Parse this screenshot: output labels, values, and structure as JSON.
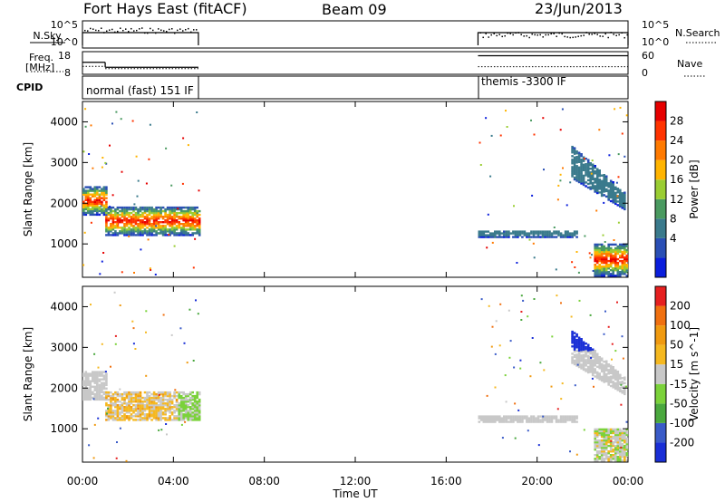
{
  "header": {
    "station": "Fort Hays East (fitACF)",
    "beam": "Beam 09",
    "date": "23/Jun/2013"
  },
  "chart_data": [
    {
      "type": "line",
      "name": "noise-panel",
      "left_label": "N.Sky",
      "right_label": "N.Search",
      "left_ticks": [
        "10^5",
        "10^0"
      ],
      "right_ticks": [
        "10^5",
        "10^0"
      ],
      "series": [
        {
          "segments": [
            [
              0.0,
              5.1
            ],
            [
              17.4,
              24.0
            ]
          ]
        }
      ]
    },
    {
      "type": "line",
      "name": "freq-panel",
      "left_label_1": "Freq.",
      "left_label_2": "[MHz]",
      "right_label": "Nave",
      "left_ticks": [
        "18",
        "8"
      ],
      "right_ticks": [
        "60",
        "0"
      ],
      "freq_steps": [
        {
          "x0": 0.0,
          "x1": 1.0,
          "mhz": 13.3
        },
        {
          "x0": 1.0,
          "x1": 5.1,
          "mhz": 11.1
        },
        {
          "x0": 17.4,
          "x1": 24.0,
          "mhz": 16.2
        }
      ],
      "nave_steps": [
        {
          "x0": 0.0,
          "x1": 1.0,
          "n": 21
        },
        {
          "x0": 1.0,
          "x1": 5.1,
          "n": 15
        },
        {
          "x0": 17.4,
          "x1": 24.0,
          "n": 20
        }
      ]
    },
    {
      "type": "table",
      "name": "cpid-panel",
      "label": "CPID",
      "modes": [
        {
          "x": 0.05,
          "text": "normal (fast) 151 IF"
        },
        {
          "x": 17.45,
          "text": "themis -3300 IF"
        }
      ]
    },
    {
      "type": "heatmap",
      "name": "power-panel",
      "ylabel": "Slant Range [km]",
      "yticks": [
        1000,
        2000,
        3000,
        4000
      ],
      "ylim": [
        180,
        4500
      ],
      "colorbar_label": "Power [dB]",
      "colorbar_ticks": [
        "28",
        "24",
        "20",
        "16",
        "12",
        "8",
        "4"
      ],
      "colors": [
        "#0a1edc",
        "#2a4fb5",
        "#3a7a8c",
        "#4a9a60",
        "#9acd32",
        "#ffb400",
        "#ff7a00",
        "#ff3300",
        "#e60000"
      ],
      "bands": [
        {
          "x0": 0.0,
          "x1": 1.0,
          "r0": 1700,
          "r1": 2400
        },
        {
          "x0": 1.0,
          "x1": 5.1,
          "r0": 1200,
          "r1": 1900
        },
        {
          "x0": 17.4,
          "x1": 21.8,
          "r0": 1150,
          "r1": 1300
        },
        {
          "x0": 21.5,
          "x1": 23.9,
          "r0": 1800,
          "r1": 3400
        },
        {
          "x0": 22.5,
          "x1": 24.0,
          "r0": 200,
          "r1": 1000
        }
      ]
    },
    {
      "type": "heatmap",
      "name": "velocity-panel",
      "ylabel": "Slant Range [km]",
      "yticks": [
        1000,
        2000,
        3000,
        4000
      ],
      "ylim": [
        180,
        4500
      ],
      "xticks": [
        "00:00",
        "04:00",
        "08:00",
        "12:00",
        "16:00",
        "20:00",
        "00:00"
      ],
      "xlabel": "Time UT",
      "colorbar_label": "Velocity [m s^-1]",
      "colorbar_ticks": [
        "200",
        "100",
        "50",
        "15",
        "-15",
        "-50",
        "-100",
        "-200"
      ],
      "colors": [
        "#1a2fd6",
        "#3a5bc8",
        "#4aa83e",
        "#7bd23a",
        "#c8c8c8",
        "#f5b820",
        "#f09a10",
        "#f07010",
        "#e62020"
      ],
      "bands": [
        {
          "x0": 0.0,
          "x1": 1.0,
          "r0": 1700,
          "r1": 2400
        },
        {
          "x0": 1.0,
          "x1": 5.1,
          "r0": 1200,
          "r1": 1900
        },
        {
          "x0": 17.4,
          "x1": 21.8,
          "r0": 1150,
          "r1": 1300
        },
        {
          "x0": 21.5,
          "x1": 23.9,
          "r0": 1800,
          "r1": 3400
        },
        {
          "x0": 22.5,
          "x1": 24.0,
          "r0": 200,
          "r1": 1000
        }
      ]
    }
  ]
}
